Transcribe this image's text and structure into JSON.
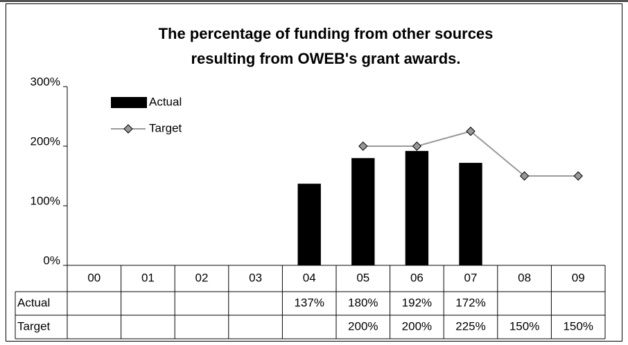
{
  "chart_data": {
    "type": "bar",
    "title": [
      "The percentage of funding from other sources",
      "resulting from OWEB's grant awards."
    ],
    "categories": [
      "00",
      "01",
      "02",
      "03",
      "04",
      "05",
      "06",
      "07",
      "08",
      "09"
    ],
    "series": [
      {
        "name": "Actual",
        "type": "bar",
        "color": "#000000",
        "values": [
          null,
          null,
          null,
          null,
          137,
          180,
          192,
          172,
          null,
          null
        ],
        "value_labels": [
          null,
          null,
          null,
          null,
          "137%",
          "180%",
          "192%",
          "172%",
          null,
          null
        ]
      },
      {
        "name": "Target",
        "type": "line",
        "color": "#999999",
        "values": [
          null,
          null,
          null,
          null,
          null,
          200,
          200,
          225,
          150,
          150
        ],
        "value_labels": [
          null,
          null,
          null,
          null,
          null,
          "200%",
          "200%",
          "225%",
          "150%",
          "150%"
        ]
      }
    ],
    "ylim": [
      0,
      300
    ],
    "yticks": [
      {
        "value": 0,
        "label": "0%"
      },
      {
        "value": 100,
        "label": "100%"
      },
      {
        "value": 200,
        "label": "200%"
      },
      {
        "value": 300,
        "label": "300%"
      }
    ],
    "legend": "top-left"
  }
}
